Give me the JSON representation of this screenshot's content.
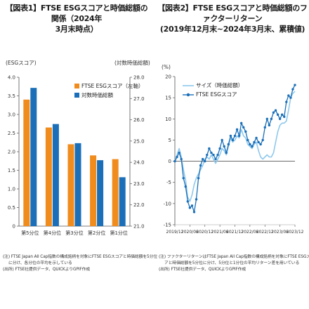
{
  "chart_data": [
    {
      "type": "bar",
      "title_lines": [
        "【図表1】FTSE ESGスコアと時価総額の関係（2024年",
        "3月末時点）"
      ],
      "ylabel_left": "(ESGスコア)",
      "ylabel_right": "(対数時価総額)",
      "categories": [
        "第5分位",
        "第4分位",
        "第3分位",
        "第2分位",
        "第1分位"
      ],
      "series": [
        {
          "name": "FTSE ESGスコア（左軸）",
          "axis": "left",
          "color": "#f08c1e",
          "values": [
            3.4,
            2.65,
            2.2,
            1.9,
            1.8
          ]
        },
        {
          "name": "対数時価総額",
          "axis": "right",
          "color": "#1a6fb8",
          "values": [
            27.5,
            25.8,
            24.9,
            24.1,
            23.3
          ]
        }
      ],
      "ylim_left": [
        0,
        4.0
      ],
      "yticks_left": [
        "0",
        "0.5",
        "1.0",
        "1.5",
        "2.0",
        "2.5",
        "3.0",
        "3.5",
        "4.0"
      ],
      "ylim_right": [
        21.0,
        28.0
      ],
      "yticks_right": [
        "21.0",
        "22.0",
        "23.0",
        "24.0",
        "25.0",
        "26.0",
        "27.0",
        "28.0"
      ],
      "legend_position": "top-right",
      "grid": false
    },
    {
      "type": "line",
      "title_lines": [
        "【図表2】FTSE ESGスコアと時価総額のファクターリターン",
        "(2019年12月末~2024年3月末、累積値)"
      ],
      "ylabel": "(%)",
      "x_labels": [
        "2019/12",
        "2020/06",
        "2020/12",
        "2021/06",
        "2021/12",
        "2022/06",
        "2022/12",
        "2023/06",
        "2023/12"
      ],
      "ylim": [
        -15,
        20
      ],
      "yticks": [
        "-15",
        "-10",
        "-5",
        "0",
        "5",
        "10",
        "15",
        "20"
      ],
      "series": [
        {
          "name": "サイズ（時価総額）",
          "color": "#8ec8ec",
          "marker": "none",
          "values": [
            0,
            1.5,
            3.0,
            1.0,
            -2.0,
            -4.5,
            -8.5,
            -9.5,
            -8.0,
            -5.5,
            -4.0,
            -3.0,
            -2.0,
            -1.0,
            0.5,
            1.0,
            0.5,
            1.5,
            0.5,
            -0.5,
            0.5,
            1.5,
            3.0,
            2.5,
            1.5,
            3.5,
            5.5,
            4.5,
            5.0,
            6.0,
            5.5,
            7.5,
            6.0,
            5.5,
            4.0,
            3.5,
            3.0,
            4.0,
            4.5,
            2.5,
            1.0,
            0.5,
            1.0,
            1.5,
            1.0,
            1.0,
            2.0,
            4.5,
            7.0,
            8.5,
            9.0,
            9.0,
            9.5,
            12.0,
            15.0,
            16.0,
            16.5
          ]
        },
        {
          "name": "FTSE ESGスコア",
          "color": "#1a6fb8",
          "marker": "circle",
          "values": [
            0,
            1.0,
            2.0,
            0.5,
            -4.0,
            -6.0,
            -9.5,
            -11.0,
            -10.5,
            -12.0,
            -9.0,
            -4.0,
            -1.0,
            0.5,
            0.0,
            1.5,
            3.0,
            2.0,
            1.5,
            0.5,
            1.5,
            3.0,
            5.0,
            3.5,
            2.0,
            4.0,
            6.0,
            5.0,
            6.0,
            7.5,
            6.0,
            9.0,
            8.0,
            7.0,
            5.0,
            4.0,
            3.5,
            4.5,
            5.5,
            4.5,
            4.0,
            5.0,
            8.0,
            10.0,
            8.5,
            10.0,
            11.5,
            12.0,
            11.0,
            10.0,
            11.0,
            10.5,
            14.0,
            15.5,
            15.0,
            17.0,
            18.0
          ]
        }
      ],
      "legend_position": "top-left",
      "grid": false
    }
  ],
  "notes_left": [
    "(注) FTSE Japan All Cap指数の構成銘柄を対象にFTSE ESGスコアと時価総額を5分位",
    "に分け、各分位の平均を示している",
    "(出所) FTSE社提供データ、QUICKよりGPIF作成"
  ],
  "notes_right": [
    "(注) ファクターリターンはFTSE Japan All Cap指数の構成銘柄を対象にFTSE ESGスコ",
    "アと時価総額を5分位に分け、5分位と1分位の平均リターン差を用いている",
    "(出所) FTSE社提供データ、QUICKよりGPIF作成"
  ]
}
